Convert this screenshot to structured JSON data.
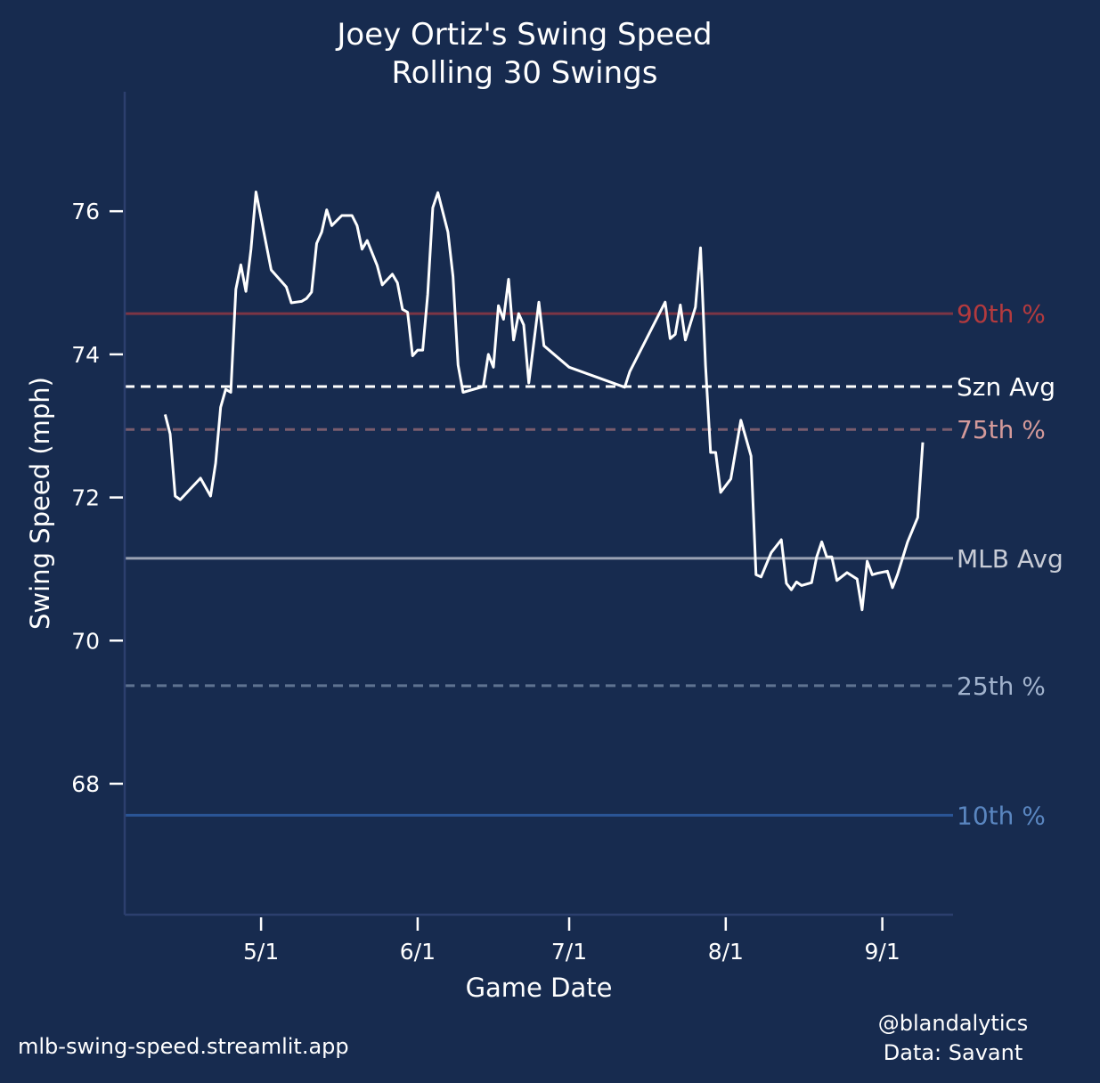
{
  "chart_data": {
    "type": "line",
    "title": "Joey Ortiz's Swing Speed",
    "subtitle": "Rolling 30 Swings",
    "xlabel": "Game Date",
    "ylabel": "Swing Speed (mph)",
    "xlim": [
      "4/4",
      "9/15"
    ],
    "ylim": [
      66.17,
      77.67
    ],
    "x_ticks": [
      "5/1",
      "6/1",
      "7/1",
      "8/1",
      "9/1"
    ],
    "y_ticks": [
      68,
      70,
      72,
      74,
      76
    ],
    "grid": false,
    "line_color": "#ffffff",
    "background_color": "#172b4f",
    "series": [
      {
        "x": [
          "4/12",
          "4/13",
          "4/14",
          "4/15",
          "4/19",
          "4/21",
          "4/22",
          "4/23",
          "4/24",
          "4/25",
          "4/26",
          "4/27",
          "4/28",
          "4/29",
          "4/30",
          "5/3",
          "5/6",
          "5/7",
          "5/8",
          "5/9",
          "5/10",
          "5/11",
          "5/12",
          "5/13",
          "5/14",
          "5/15",
          "5/17",
          "5/19",
          "5/20",
          "5/21",
          "5/22",
          "5/24",
          "5/25",
          "5/27",
          "5/28",
          "5/29",
          "5/30",
          "5/31",
          "6/1",
          "6/2",
          "6/3",
          "6/4",
          "6/5",
          "6/7",
          "6/8",
          "6/9",
          "6/10",
          "6/14",
          "6/15",
          "6/16",
          "6/17",
          "6/18",
          "6/19",
          "6/20",
          "6/21",
          "6/22",
          "6/23",
          "6/25",
          "6/26",
          "7/1",
          "7/12",
          "7/13",
          "7/20",
          "7/21",
          "7/22",
          "7/23",
          "7/24",
          "7/26",
          "7/27",
          "7/28",
          "7/29",
          "7/30",
          "7/31",
          "8/2",
          "8/4",
          "8/6",
          "8/7",
          "8/8",
          "8/10",
          "8/12",
          "8/13",
          "8/14",
          "8/15",
          "8/16",
          "8/18",
          "8/19",
          "8/20",
          "8/21",
          "8/22",
          "8/23",
          "8/25",
          "8/27",
          "8/28",
          "8/29",
          "8/30",
          "8/31",
          "9/2",
          "9/3",
          "9/4",
          "9/6",
          "9/8",
          "9/9"
        ],
        "y": [
          73.16,
          72.89,
          72.02,
          71.97,
          72.27,
          72.02,
          72.48,
          73.26,
          73.51,
          73.47,
          74.91,
          75.25,
          74.88,
          75.47,
          76.27,
          75.18,
          74.94,
          74.72,
          74.73,
          74.74,
          74.78,
          74.87,
          75.55,
          75.71,
          76.02,
          75.8,
          75.94,
          75.94,
          75.8,
          75.47,
          75.59,
          75.24,
          74.97,
          75.12,
          75.0,
          74.63,
          74.59,
          73.98,
          74.06,
          74.06,
          74.84,
          76.05,
          76.26,
          75.71,
          75.09,
          73.85,
          73.47,
          73.55,
          74.0,
          73.82,
          74.68,
          74.49,
          75.05,
          74.2,
          74.57,
          74.41,
          73.6,
          74.73,
          74.12,
          73.82,
          73.54,
          73.76,
          74.73,
          74.22,
          74.28,
          74.69,
          74.2,
          74.66,
          75.49,
          73.85,
          72.63,
          72.63,
          72.07,
          72.26,
          73.08,
          72.58,
          70.92,
          70.89,
          71.23,
          71.41,
          70.8,
          70.71,
          70.82,
          70.77,
          70.81,
          71.17,
          71.38,
          71.17,
          71.17,
          70.84,
          70.95,
          70.86,
          70.43,
          71.11,
          70.92,
          70.94,
          70.97,
          70.74,
          70.92,
          71.38,
          71.72,
          72.77
        ]
      }
    ],
    "reference_lines": [
      {
        "label": "90th %",
        "value": 74.57,
        "style": "solid",
        "line_color": "#7c3545",
        "label_color": "#b33a3e"
      },
      {
        "label": "Szn Avg",
        "value": 73.55,
        "style": "dashed",
        "line_color": "#ffffff",
        "label_color": "#ffffff"
      },
      {
        "label": "75th %",
        "value": 72.95,
        "style": "dashed",
        "line_color": "#7a5d6e",
        "label_color": "#d49a9a"
      },
      {
        "label": "MLB Avg",
        "value": 71.15,
        "style": "solid",
        "line_color": "#9aa2b3",
        "label_color": "#c8ccd6"
      },
      {
        "label": "25th %",
        "value": 69.37,
        "style": "dashed",
        "line_color": "#5f7391",
        "label_color": "#a1b2cc"
      },
      {
        "label": "10th %",
        "value": 67.56,
        "style": "solid",
        "line_color": "#2a5596",
        "label_color": "#5a86c0"
      }
    ]
  },
  "footer": {
    "site": "mlb-swing-speed.streamlit.app",
    "credit_line1": "@blandalytics",
    "credit_line2": "Data: Savant"
  }
}
